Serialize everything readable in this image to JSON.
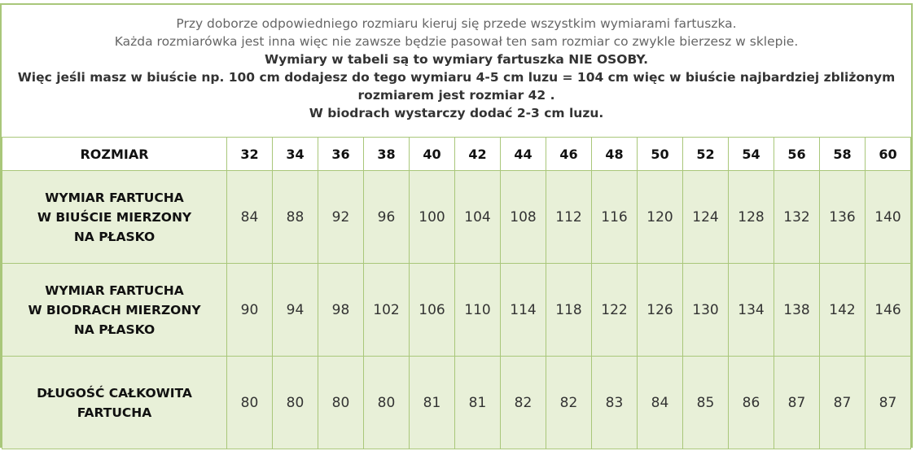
{
  "intro": {
    "line1": "Przy doborze odpowiedniego rozmiaru kieruj się przede wszystkim wymiarami fartuszka.",
    "line2": "Każda rozmiarówka jest inna więc nie zawsze będzie pasował ten sam rozmiar co zwykle bierzesz w sklepie.",
    "line3": "Wymiary w tabeli są to wymiary fartuszka NIE OSOBY.",
    "line4": "Więc jeśli masz w biuście np. 100 cm dodajesz do tego wymiaru 4-5 cm luzu = 104 cm więc w biuście najbardziej zbliżonym",
    "line5": "rozmiarem jest rozmiar 42 .",
    "line6": "W biodrach wystarczy dodać 2-3 cm luzu."
  },
  "table": {
    "header_label": "ROZMIAR",
    "sizes": [
      "32",
      "34",
      "36",
      "38",
      "40",
      "42",
      "44",
      "46",
      "48",
      "50",
      "52",
      "54",
      "56",
      "58",
      "60"
    ],
    "rows": [
      {
        "label": [
          "WYMIAR FARTUCHA",
          "W BIUŚCIE MIERZONY",
          "NA PŁASKO"
        ],
        "values": [
          "84",
          "88",
          "92",
          "96",
          "100",
          "104",
          "108",
          "112",
          "116",
          "120",
          "124",
          "128",
          "132",
          "136",
          "140"
        ]
      },
      {
        "label": [
          "WYMIAR FARTUCHA",
          "W BIODRACH MIERZONY",
          "NA PŁASKO"
        ],
        "values": [
          "90",
          "94",
          "98",
          "102",
          "106",
          "110",
          "114",
          "118",
          "122",
          "126",
          "130",
          "134",
          "138",
          "142",
          "146"
        ]
      },
      {
        "label": [
          "DŁUGOŚĆ CAŁKOWITA",
          "FARTUCHA"
        ],
        "values": [
          "80",
          "80",
          "80",
          "80",
          "81",
          "81",
          "82",
          "82",
          "83",
          "84",
          "85",
          "86",
          "87",
          "87",
          "87"
        ]
      }
    ]
  },
  "colors": {
    "border": "#a9c77a",
    "row_fill": "#e8f0d8"
  }
}
